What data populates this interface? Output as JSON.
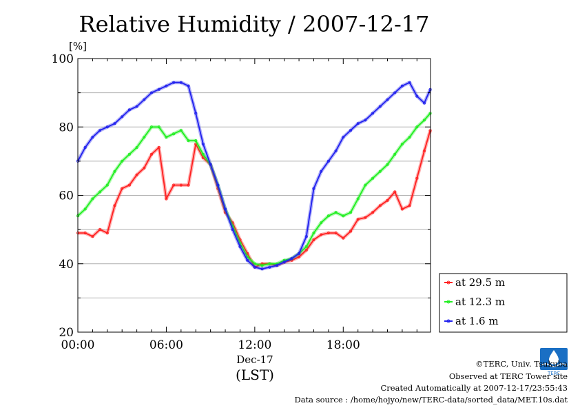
{
  "chart_data": {
    "type": "line",
    "title": "Relative Humidity / 2007-12-17",
    "ylabel": "[%]",
    "xlabel": "(LST)",
    "date_label": "Dec-17",
    "ylim": [
      20,
      100
    ],
    "yticks": [
      "20",
      "40",
      "60",
      "80",
      "100"
    ],
    "xlim": [
      0,
      23.92
    ],
    "xticks": [
      {
        "x": 0,
        "label": "00:00"
      },
      {
        "x": 6,
        "label": "06:00"
      },
      {
        "x": 12,
        "label": "12:00"
      },
      {
        "x": 18,
        "label": "18:00"
      }
    ],
    "grid": true,
    "legend_position": "right-bottom",
    "series": [
      {
        "name": "at 29.5 m",
        "color": "#ff2020",
        "x": [
          0,
          0.5,
          1,
          1.5,
          2,
          2.5,
          3,
          3.5,
          4,
          4.5,
          5,
          5.5,
          6,
          6.5,
          7,
          7.5,
          8,
          8.5,
          9,
          9.5,
          10,
          10.5,
          11,
          11.5,
          12,
          12.5,
          13,
          13.5,
          14,
          14.5,
          15,
          15.5,
          16,
          16.5,
          17,
          17.5,
          18,
          18.5,
          19,
          19.5,
          20,
          20.5,
          21,
          21.5,
          22,
          22.5,
          23,
          23.5,
          23.9
        ],
        "values": [
          49,
          49,
          48,
          50,
          49,
          57,
          62,
          63,
          66,
          68,
          72,
          74,
          59,
          63,
          63,
          63,
          75,
          71,
          69,
          62,
          55,
          52,
          47,
          43,
          39,
          40,
          40,
          39.5,
          40.5,
          41,
          42,
          44,
          47,
          48.5,
          49,
          49,
          47.5,
          49.5,
          53,
          53.5,
          55,
          57,
          58.5,
          61,
          56,
          57,
          65,
          73,
          79
        ]
      },
      {
        "name": "at 12.3 m",
        "color": "#20ee20",
        "x": [
          0,
          0.5,
          1,
          1.5,
          2,
          2.5,
          3,
          3.5,
          4,
          4.5,
          5,
          5.5,
          6,
          6.5,
          7,
          7.5,
          8,
          8.5,
          9,
          9.5,
          10,
          10.5,
          11,
          11.5,
          12,
          12.5,
          13,
          13.5,
          14,
          14.5,
          15,
          15.5,
          16,
          16.5,
          17,
          17.5,
          18,
          18.5,
          19,
          19.5,
          20,
          20.5,
          21,
          21.5,
          22,
          22.5,
          23,
          23.5,
          23.9
        ],
        "values": [
          54,
          56,
          59,
          61,
          63,
          67,
          70,
          72,
          74,
          77,
          80,
          80,
          77,
          78,
          79,
          76,
          76,
          72,
          69,
          63,
          56,
          51,
          46,
          42,
          40,
          39.5,
          40,
          40,
          41,
          41.5,
          43,
          45,
          49,
          52,
          54,
          55,
          54,
          55,
          59,
          63,
          65,
          67,
          69,
          72,
          75,
          77,
          80,
          82,
          84
        ]
      },
      {
        "name": "at 1.6 m",
        "color": "#2020ee",
        "x": [
          0,
          0.5,
          1,
          1.5,
          2,
          2.5,
          3,
          3.5,
          4,
          4.5,
          5,
          5.5,
          6,
          6.5,
          7,
          7.5,
          8,
          8.5,
          9,
          9.5,
          10,
          10.5,
          11,
          11.5,
          12,
          12.5,
          13,
          13.5,
          14,
          14.5,
          15,
          15.5,
          16,
          16.5,
          17,
          17.5,
          18,
          18.5,
          19,
          19.5,
          20,
          20.5,
          21,
          21.5,
          22,
          22.5,
          23,
          23.5,
          23.9
        ],
        "values": [
          70,
          74,
          77,
          79,
          80,
          81,
          83,
          85,
          86,
          88,
          90,
          91,
          92,
          93,
          93,
          92,
          84,
          75,
          69,
          63,
          56,
          50,
          45,
          41,
          39,
          38.5,
          39,
          39.5,
          40.5,
          41.5,
          43,
          48,
          62,
          67,
          70,
          73,
          77,
          79,
          81,
          82,
          84,
          86,
          88,
          90,
          92,
          93,
          89,
          87,
          91
        ]
      }
    ]
  },
  "logo": {
    "text": "TERC"
  },
  "credits": {
    "line1": "©TERC, Univ. Tsukuba",
    "line2": "Observed at TERC Tower site",
    "line3": "Created Automatically at 2007-12-17/23:55:43",
    "line4": "Data source : /home/hojyo/new/TERC-data/sorted_data/MET.10s.dat"
  }
}
